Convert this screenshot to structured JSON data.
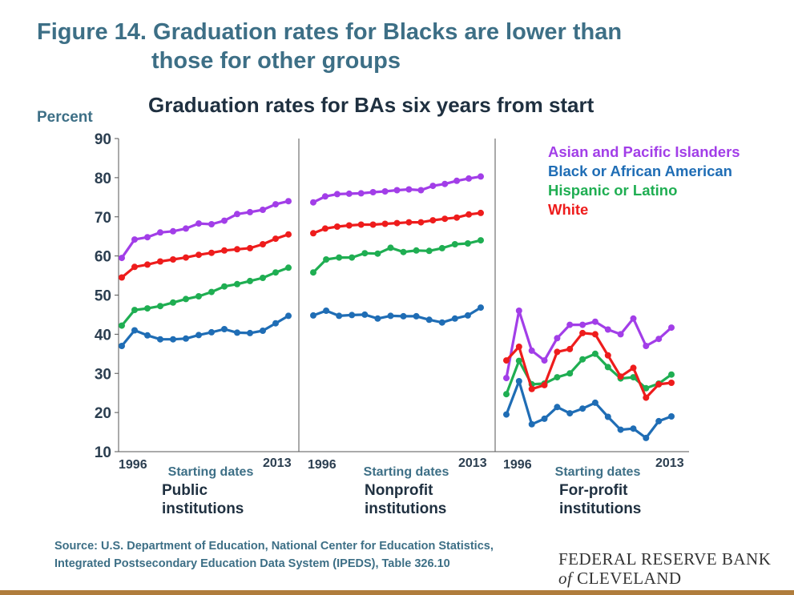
{
  "figure_title_line1": "Figure 14. Graduation rates for Blacks are lower than",
  "figure_title_line2": "those for other groups",
  "source_line1": "Source: U.S. Department of Education, National Center for Education Statistics,",
  "source_line2": "Integrated Postsecondary Education Data System (IPEDS), Table 326.10",
  "logo_line1": "FEDERAL RESERVE BANK",
  "logo_line2_italic": "of",
  "logo_line2": "CLEVELAND",
  "chart_data": {
    "type": "line",
    "title": "Graduation rates for BAs six years from start",
    "ylabel": "Percent",
    "ylim": [
      10,
      90
    ],
    "yticks": [
      10,
      20,
      30,
      40,
      50,
      60,
      70,
      80,
      90
    ],
    "grid": false,
    "legend_position": "top-right",
    "x_start_label": "1996",
    "x_end_label": "2013",
    "xlabel": "Starting dates",
    "x": [
      1996,
      1997,
      1998,
      1999,
      2000,
      2001,
      2002,
      2003,
      2004,
      2005,
      2006,
      2007,
      2008,
      2009,
      2010,
      2011,
      2012,
      2013
    ],
    "legend": [
      {
        "name": "Asian and Pacific Islanders",
        "color": "#a23ee8"
      },
      {
        "name": "Black or African American",
        "color": "#1f6db5"
      },
      {
        "name": "Hispanic or Latino",
        "color": "#1fae52"
      },
      {
        "name": "White",
        "color": "#ee1c1c"
      }
    ],
    "panels": [
      {
        "name_line1": "Public",
        "name_line2": "institutions",
        "series": [
          {
            "name": "Asian and Pacific Islanders",
            "color": "#a23ee8",
            "values": [
              59.5,
              64.2,
              64.8,
              66,
              66.3,
              67,
              68.3,
              68.1,
              69,
              70.7,
              71.2,
              71.8,
              73.2,
              74
            ]
          },
          {
            "name": "Black or African American",
            "color": "#1f6db5",
            "values": [
              37,
              41,
              39.7,
              38.7,
              38.7,
              38.9,
              39.8,
              40.5,
              41.3,
              40.4,
              40.3,
              40.9,
              42.8,
              44.7
            ]
          },
          {
            "name": "Hispanic or Latino",
            "color": "#1fae52",
            "values": [
              42.2,
              46.2,
              46.6,
              47.2,
              48.1,
              49,
              49.7,
              50.8,
              52.2,
              52.8,
              53.6,
              54.4,
              55.8,
              57
            ]
          },
          {
            "name": "White",
            "color": "#ee1c1c",
            "values": [
              54.5,
              57.2,
              57.8,
              58.6,
              59.1,
              59.6,
              60.3,
              60.8,
              61.4,
              61.7,
              62,
              63,
              64.4,
              65.5
            ]
          }
        ]
      },
      {
        "name_line1": "Nonprofit",
        "name_line2": "institutions",
        "series": [
          {
            "name": "Asian and Pacific Islanders",
            "color": "#a23ee8",
            "values": [
              73.7,
              75.2,
              75.8,
              75.9,
              76,
              76.3,
              76.5,
              76.8,
              77,
              76.8,
              77.9,
              78.4,
              79.2,
              79.8,
              80.3
            ]
          },
          {
            "name": "Black or African American",
            "color": "#1f6db5",
            "values": [
              44.8,
              46,
              44.7,
              44.9,
              45,
              44,
              44.7,
              44.6,
              44.6,
              43.7,
              43,
              44,
              44.8,
              46.8
            ]
          },
          {
            "name": "Hispanic or Latino",
            "color": "#1fae52",
            "values": [
              55.8,
              59.1,
              59.6,
              59.6,
              60.7,
              60.6,
              62.1,
              61,
              61.4,
              61.3,
              62,
              63,
              63.2,
              64
            ]
          },
          {
            "name": "White",
            "color": "#ee1c1c",
            "values": [
              65.8,
              67,
              67.5,
              67.8,
              68,
              68,
              68.2,
              68.4,
              68.6,
              68.6,
              69.1,
              69.5,
              69.8,
              70.6,
              71
            ]
          }
        ]
      },
      {
        "name_line1": "For-profit",
        "name_line2": "institutions",
        "series": [
          {
            "name": "Asian and Pacific Islanders",
            "color": "#a23ee8",
            "values": [
              28.8,
              46,
              35.8,
              33.3,
              39,
              42.4,
              42.4,
              43.2,
              41.2,
              40,
              44,
              37,
              38.8,
              41.7
            ]
          },
          {
            "name": "Black or African American",
            "color": "#1f6db5",
            "values": [
              19.5,
              28,
              17,
              18.4,
              21.4,
              19.8,
              21,
              22.5,
              18.9,
              15.6,
              15.9,
              13.5,
              17.8,
              19
            ]
          },
          {
            "name": "Hispanic or Latino",
            "color": "#1fae52",
            "values": [
              24.7,
              33.2,
              27.2,
              27.4,
              29,
              30,
              33.6,
              35,
              31.6,
              28.7,
              29,
              26.2,
              27.4,
              29.7
            ]
          },
          {
            "name": "White",
            "color": "#ee1c1c",
            "values": [
              33.3,
              36.8,
              26,
              27,
              35.5,
              36.2,
              40.3,
              40,
              34.6,
              29.2,
              31.4,
              23.8,
              27.2,
              27.6
            ]
          }
        ]
      }
    ]
  }
}
